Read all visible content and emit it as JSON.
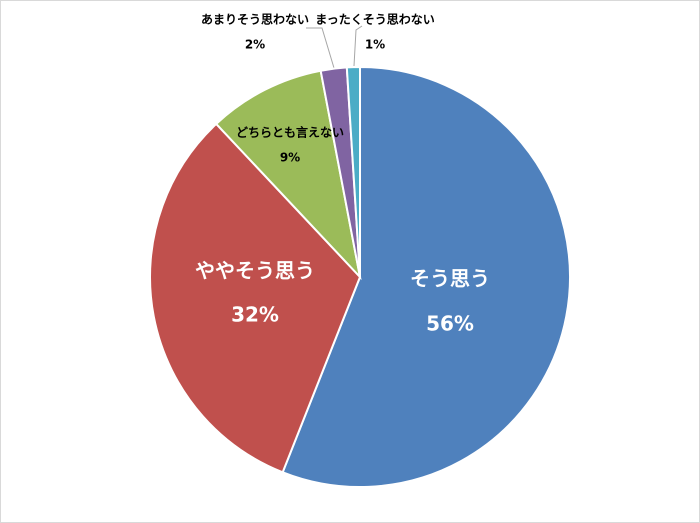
{
  "chart_data": {
    "type": "pie",
    "categories": [
      "そう思う",
      "ややそう思う",
      "どちらとも言えない",
      "あまりそう思わない",
      "まったくそう思わない"
    ],
    "values": [
      56,
      32,
      9,
      2,
      1
    ],
    "value_labels": [
      "56%",
      "32%",
      "9%",
      "2%",
      "1%"
    ],
    "colors": [
      "#4f81bd",
      "#c0504d",
      "#9bbb59",
      "#8064a2",
      "#4bacc6"
    ]
  }
}
